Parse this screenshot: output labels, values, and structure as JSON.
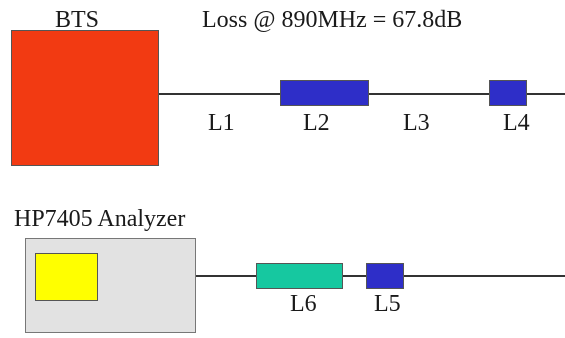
{
  "bts": {
    "label": "BTS",
    "color": "#f23a12"
  },
  "loss_label": "Loss @ 890MHz = 67.8dB",
  "analyzer": {
    "label": "HP7405 Analyzer",
    "body_color": "#e2e2e2",
    "screen_color": "#ffff00"
  },
  "segments": {
    "l1": "L1",
    "l2": "L2",
    "l3": "L3",
    "l4": "L4",
    "l5": "L5",
    "l6": "L6"
  },
  "colors": {
    "line": "#333333",
    "blue_block": "#2e2ec8",
    "green_block": "#16c8a0"
  }
}
